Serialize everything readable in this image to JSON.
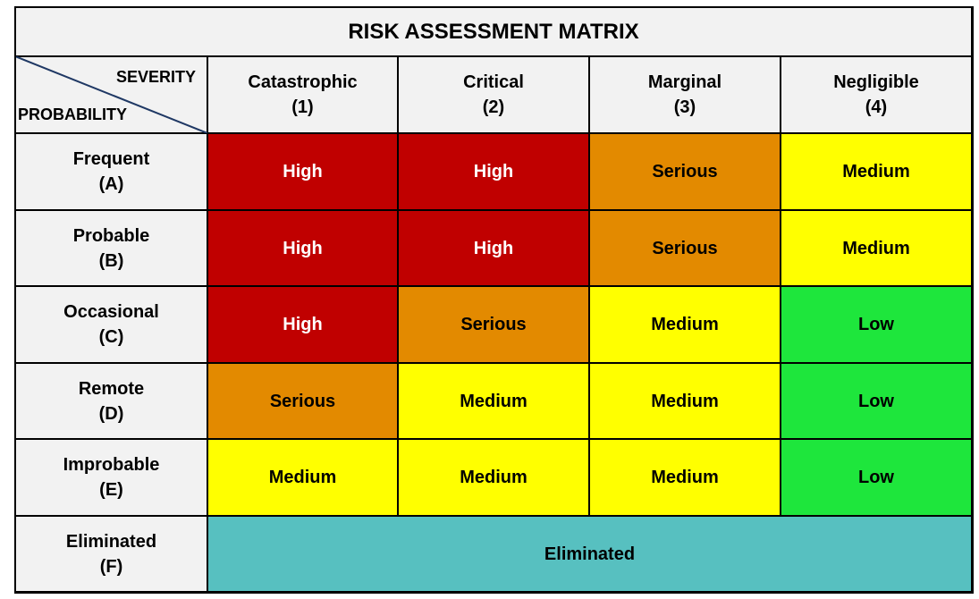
{
  "title": "RISK ASSESSMENT MATRIX",
  "corner": {
    "severity": "SEVERITY",
    "probability": "PROBABILITY"
  },
  "columns": [
    {
      "name": "Catastrophic",
      "code": "(1)"
    },
    {
      "name": "Critical",
      "code": "(2)"
    },
    {
      "name": "Marginal",
      "code": "(3)"
    },
    {
      "name": "Negligible",
      "code": "(4)"
    }
  ],
  "rows": [
    {
      "name": "Frequent",
      "code": "(A)",
      "cells": [
        {
          "label": "High",
          "color": "#c00000"
        },
        {
          "label": "High",
          "color": "#c00000"
        },
        {
          "label": "Serious",
          "color": "#e38a00"
        },
        {
          "label": "Medium",
          "color": "#ffff00"
        }
      ]
    },
    {
      "name": "Probable",
      "code": "(B)",
      "cells": [
        {
          "label": "High",
          "color": "#c00000"
        },
        {
          "label": "High",
          "color": "#c00000"
        },
        {
          "label": "Serious",
          "color": "#e38a00"
        },
        {
          "label": "Medium",
          "color": "#ffff00"
        }
      ]
    },
    {
      "name": "Occasional",
      "code": "(C)",
      "cells": [
        {
          "label": "High",
          "color": "#c00000"
        },
        {
          "label": "Serious",
          "color": "#e38a00"
        },
        {
          "label": "Medium",
          "color": "#ffff00"
        },
        {
          "label": "Low",
          "color": "#1ee63c"
        }
      ]
    },
    {
      "name": "Remote",
      "code": "(D)",
      "cells": [
        {
          "label": "Serious",
          "color": "#e38a00"
        },
        {
          "label": "Medium",
          "color": "#ffff00"
        },
        {
          "label": "Medium",
          "color": "#ffff00"
        },
        {
          "label": "Low",
          "color": "#1ee63c"
        }
      ]
    },
    {
      "name": "Improbable",
      "code": "(E)",
      "cells": [
        {
          "label": "Medium",
          "color": "#ffff00"
        },
        {
          "label": "Medium",
          "color": "#ffff00"
        },
        {
          "label": "Medium",
          "color": "#ffff00"
        },
        {
          "label": "Low",
          "color": "#1ee63c"
        }
      ]
    }
  ],
  "eliminated": {
    "name": "Eliminated",
    "code": "(F)",
    "label": "Eliminated",
    "color": "#57c0c0"
  }
}
